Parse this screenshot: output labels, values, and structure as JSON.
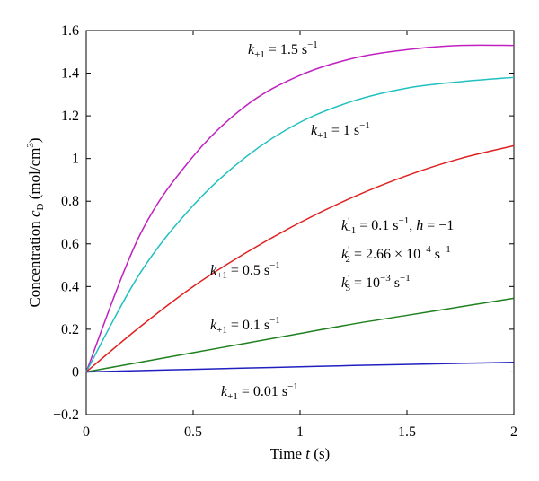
{
  "chart_data": {
    "type": "line",
    "title": "",
    "xlabel": "Time t (s)",
    "ylabel": "Concentration c_D (mol/cm^3)",
    "xlim": [
      0,
      2
    ],
    "ylim": [
      -0.2,
      1.6
    ],
    "xticks": [
      "0",
      "0.5",
      "1",
      "1.5",
      "2"
    ],
    "yticks": [
      "−0.2",
      "0",
      "0.2",
      "0.4",
      "0.6",
      "0.8",
      "1",
      "1.2",
      "1.4",
      "1.6"
    ],
    "grid": false,
    "series": [
      {
        "name": "k+1 = 1.5 s−1",
        "color": "#c020c0",
        "x": [
          0,
          0.25,
          0.5,
          0.75,
          1,
          1.25,
          1.5,
          1.75,
          2
        ],
        "y": [
          0,
          0.64,
          1.01,
          1.25,
          1.39,
          1.47,
          1.51,
          1.53,
          1.53
        ]
      },
      {
        "name": "k+1 = 1 s−1",
        "color": "#20c0c0",
        "x": [
          0,
          0.25,
          0.5,
          0.75,
          1,
          1.25,
          1.5,
          1.75,
          2
        ],
        "y": [
          0,
          0.46,
          0.78,
          1.01,
          1.17,
          1.27,
          1.33,
          1.36,
          1.38
        ]
      },
      {
        "name": "k+1 = 0.5 s−1",
        "color": "#e02020",
        "x": [
          0,
          0.25,
          0.5,
          0.75,
          1,
          1.25,
          1.5,
          1.75,
          2
        ],
        "y": [
          0,
          0.21,
          0.4,
          0.56,
          0.7,
          0.82,
          0.92,
          1.0,
          1.06
        ]
      },
      {
        "name": "k+1 = 0.1 s−1",
        "color": "#208020",
        "x": [
          0,
          0.25,
          0.5,
          0.75,
          1,
          1.25,
          1.5,
          1.75,
          2
        ],
        "y": [
          0,
          0.045,
          0.09,
          0.135,
          0.18,
          0.225,
          0.265,
          0.305,
          0.345
        ]
      },
      {
        "name": "k+1 = 0.01 s−1",
        "color": "#2020c0",
        "x": [
          0,
          0.25,
          0.5,
          0.75,
          1,
          1.25,
          1.5,
          1.75,
          2
        ],
        "y": [
          0,
          0.006,
          0.012,
          0.018,
          0.024,
          0.03,
          0.035,
          0.04,
          0.045
        ]
      }
    ],
    "annotations": {
      "params": [
        "k′−1 = 0.1 s−1, h = −1",
        "k′2 = 2.66 × 10−4 s−1",
        "k′3 = 10−3 s−1"
      ]
    }
  }
}
